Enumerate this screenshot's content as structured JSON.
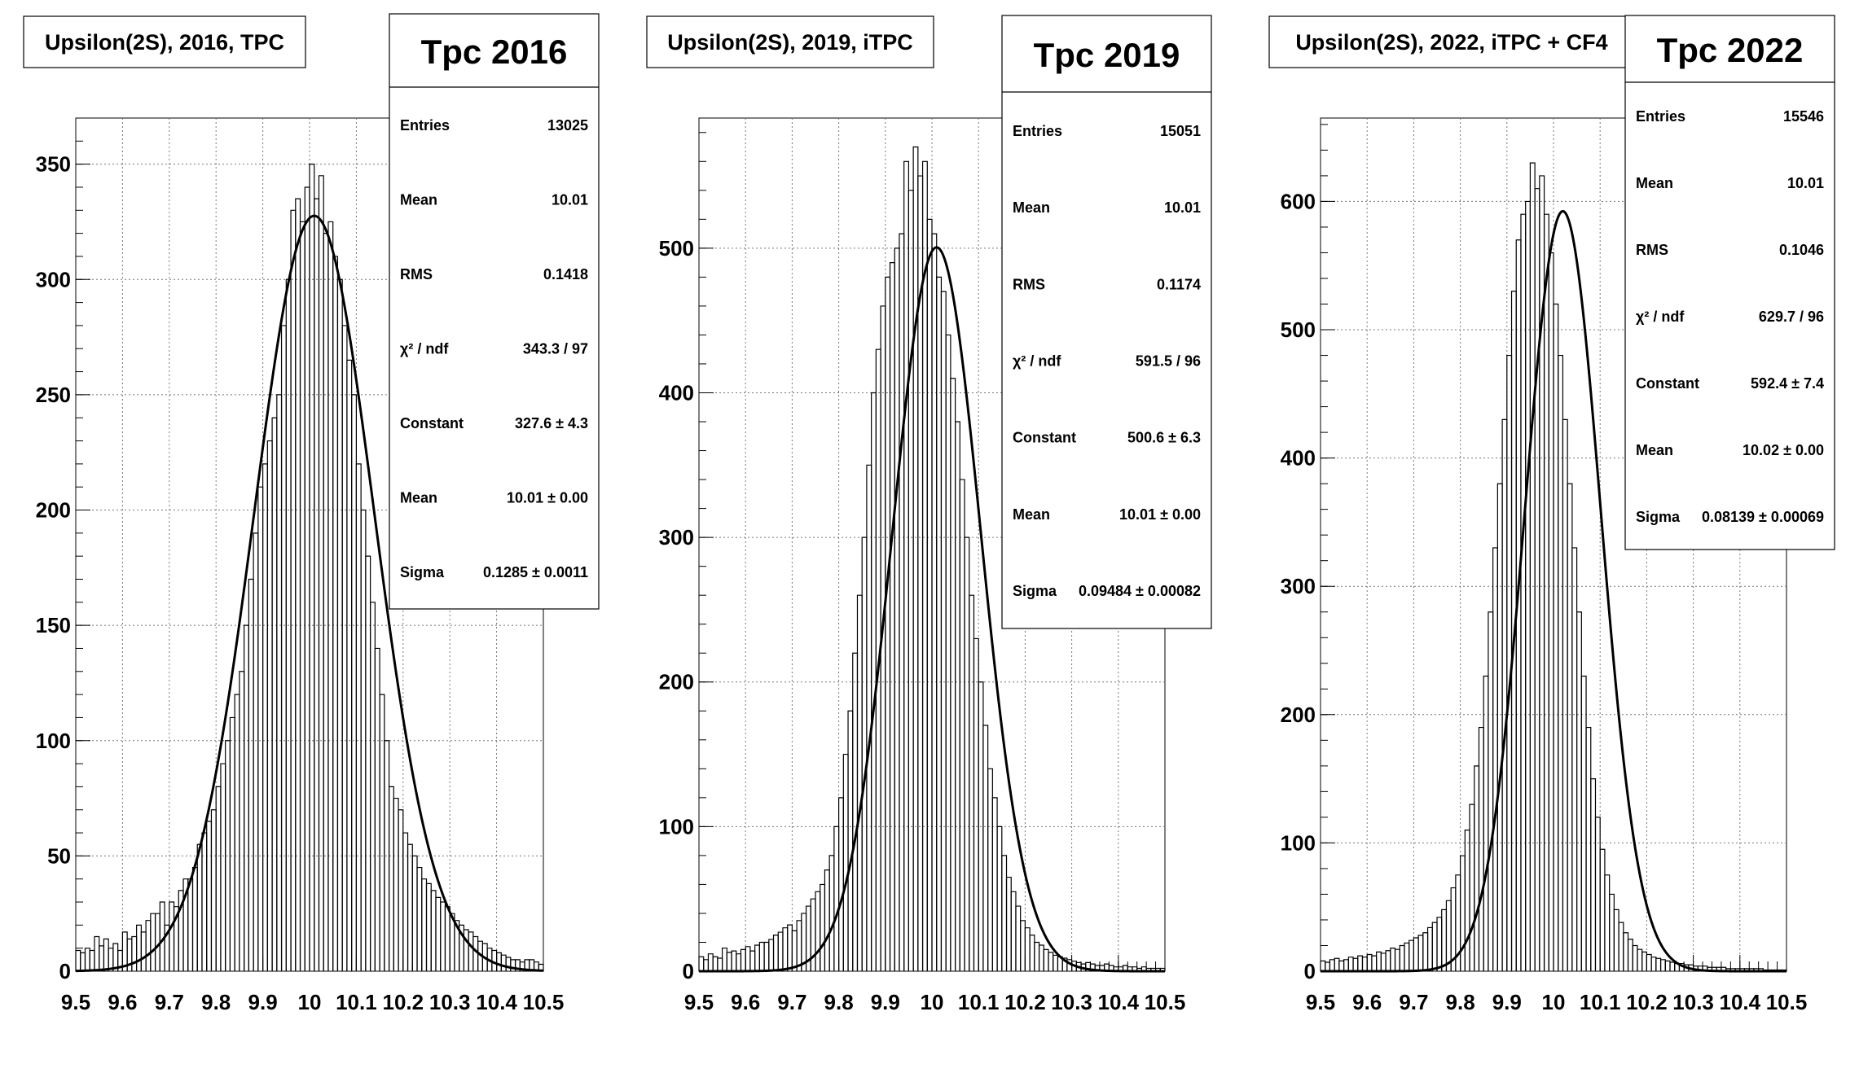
{
  "chart_data": [
    {
      "type": "histogram",
      "title": "Upsilon(2S), 2016, TPC",
      "xlim": [
        9.5,
        10.5
      ],
      "ylim": [
        0,
        370
      ],
      "x_ticks": [
        "9.5",
        "9.6",
        "9.7",
        "9.8",
        "9.9",
        "10",
        "10.1",
        "10.2",
        "10.3",
        "10.4",
        "10.5"
      ],
      "y_ticks": [
        "0",
        "50",
        "100",
        "150",
        "200",
        "250",
        "300",
        "350"
      ],
      "grid": true,
      "fit": {
        "type": "gaussian",
        "constant": 327.6,
        "mean": 10.01,
        "sigma": 0.1285
      },
      "stats": {
        "name": "Tpc 2016",
        "rows": [
          {
            "label": "Entries",
            "value": "13025"
          },
          {
            "label": "Mean",
            "value": "10.01"
          },
          {
            "label": "RMS",
            "value": "0.1418"
          },
          {
            "label": "χ² / ndf",
            "value": "343.3 / 97"
          },
          {
            "label": "Constant",
            "value": "327.6 ± 4.3"
          },
          {
            "label": "Mean",
            "value": "10.01 ± 0.00"
          },
          {
            "label": "Sigma",
            "value": "0.1285 ± 0.0011"
          }
        ]
      },
      "series": [
        {
          "x_start": 9.5,
          "bin_width": 0.01,
          "values": [
            9,
            8,
            10,
            9,
            15,
            11,
            14,
            10,
            12,
            9,
            17,
            14,
            15,
            20,
            17,
            22,
            25,
            25,
            30,
            20,
            30,
            28,
            35,
            40,
            40,
            45,
            55,
            60,
            65,
            70,
            80,
            90,
            100,
            110,
            120,
            130,
            150,
            170,
            190,
            210,
            220,
            230,
            240,
            250,
            280,
            300,
            330,
            335,
            325,
            340,
            350,
            335,
            345,
            320,
            325,
            310,
            300,
            280,
            265,
            250,
            220,
            200,
            180,
            160,
            140,
            120,
            100,
            80,
            75,
            70,
            60,
            55,
            50,
            45,
            40,
            38,
            35,
            32,
            30,
            28,
            25,
            22,
            20,
            18,
            17,
            15,
            13,
            12,
            10,
            9,
            8,
            7,
            6,
            5,
            5,
            4,
            5,
            5,
            4,
            3
          ]
        }
      ]
    },
    {
      "type": "histogram",
      "title": "Upsilon(2S), 2019, iTPC",
      "xlim": [
        9.5,
        10.5
      ],
      "ylim": [
        0,
        590
      ],
      "x_ticks": [
        "9.5",
        "9.6",
        "9.7",
        "9.8",
        "9.9",
        "10",
        "10.1",
        "10.2",
        "10.3",
        "10.4",
        "10.5"
      ],
      "y_ticks": [
        "0",
        "100",
        "200",
        "300",
        "400",
        "500"
      ],
      "grid": true,
      "fit": {
        "type": "gaussian",
        "constant": 500.6,
        "mean": 10.01,
        "sigma": 0.09484
      },
      "stats": {
        "name": "Tpc 2019",
        "rows": [
          {
            "label": "Entries",
            "value": "15051"
          },
          {
            "label": "Mean",
            "value": "10.01"
          },
          {
            "label": "RMS",
            "value": "0.1174"
          },
          {
            "label": "χ² / ndf",
            "value": "591.5 / 96"
          },
          {
            "label": "Constant",
            "value": "500.6 ± 6.3"
          },
          {
            "label": "Mean",
            "value": "10.01 ± 0.00"
          },
          {
            "label": "Sigma",
            "value": "0.09484 ± 0.00082"
          }
        ]
      },
      "series": [
        {
          "x_start": 9.5,
          "bin_width": 0.01,
          "values": [
            10,
            8,
            12,
            10,
            9,
            16,
            13,
            14,
            12,
            15,
            17,
            14,
            18,
            20,
            20,
            22,
            25,
            27,
            30,
            32,
            28,
            35,
            40,
            45,
            50,
            55,
            60,
            70,
            80,
            100,
            120,
            150,
            180,
            220,
            260,
            300,
            350,
            400,
            430,
            460,
            480,
            490,
            500,
            510,
            560,
            540,
            570,
            550,
            560,
            520,
            510,
            480,
            470,
            440,
            410,
            380,
            340,
            300,
            260,
            230,
            200,
            170,
            140,
            120,
            100,
            80,
            65,
            55,
            45,
            35,
            30,
            25,
            20,
            18,
            15,
            13,
            11,
            10,
            9,
            8,
            7,
            6,
            5,
            6,
            5,
            4,
            4,
            5,
            4,
            3,
            3,
            4,
            3,
            3,
            2,
            3,
            2,
            2,
            2,
            2
          ]
        }
      ]
    },
    {
      "type": "histogram",
      "title": "Upsilon(2S), 2022, iTPC + CF4",
      "xlim": [
        9.5,
        10.5
      ],
      "ylim": [
        0,
        665
      ],
      "x_ticks": [
        "9.5",
        "9.6",
        "9.7",
        "9.8",
        "9.9",
        "10",
        "10.1",
        "10.2",
        "10.3",
        "10.4",
        "10.5"
      ],
      "y_ticks": [
        "0",
        "100",
        "200",
        "300",
        "400",
        "500",
        "600"
      ],
      "grid": true,
      "fit": {
        "type": "gaussian",
        "constant": 592.4,
        "mean": 10.02,
        "sigma": 0.08139
      },
      "stats": {
        "name": "Tpc 2022",
        "rows": [
          {
            "label": "Entries",
            "value": "15546"
          },
          {
            "label": "Mean",
            "value": "10.01"
          },
          {
            "label": "RMS",
            "value": "0.1046"
          },
          {
            "label": "χ² / ndf",
            "value": "629.7 / 96"
          },
          {
            "label": "Constant",
            "value": "592.4 ± 7.4"
          },
          {
            "label": "Mean",
            "value": "10.02 ± 0.00"
          },
          {
            "label": "Sigma",
            "value": "0.08139 ± 0.00069"
          }
        ]
      },
      "series": [
        {
          "x_start": 9.5,
          "bin_width": 0.01,
          "values": [
            8,
            7,
            9,
            10,
            8,
            9,
            11,
            10,
            12,
            11,
            13,
            12,
            15,
            14,
            16,
            18,
            17,
            20,
            22,
            24,
            26,
            28,
            30,
            34,
            38,
            42,
            48,
            55,
            65,
            75,
            90,
            110,
            130,
            160,
            190,
            230,
            280,
            330,
            380,
            430,
            480,
            530,
            570,
            590,
            600,
            630,
            610,
            620,
            590,
            560,
            520,
            480,
            430,
            380,
            330,
            280,
            230,
            190,
            150,
            120,
            95,
            75,
            60,
            48,
            38,
            30,
            25,
            20,
            17,
            15,
            13,
            11,
            10,
            9,
            8,
            7,
            6,
            6,
            5,
            5,
            4,
            4,
            4,
            3,
            3,
            3,
            3,
            2,
            2,
            2,
            2,
            2,
            2,
            2,
            2,
            1,
            1,
            1,
            1,
            1
          ]
        }
      ]
    }
  ]
}
